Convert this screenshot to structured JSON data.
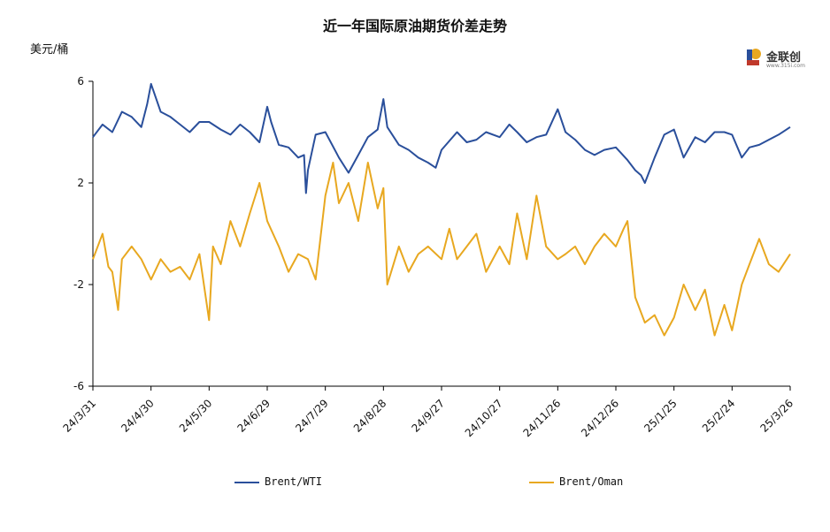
{
  "title": "近一年国际原油期货价差走势",
  "unit_label": "美元/桶",
  "logo": {
    "text": "金联创",
    "sub": "www.315i.com"
  },
  "colors": {
    "brent_wti": "#2a4f9b",
    "brent_oman": "#e8a820",
    "axis": "#000000"
  },
  "chart_data": {
    "type": "line",
    "title": "近一年国际原油期货价差走势",
    "ylabel": "美元/桶",
    "ylim": [
      -6,
      6
    ],
    "yticks": [
      6,
      2,
      -2,
      -6
    ],
    "x_range": [
      "2024-03-31",
      "2025-03-26"
    ],
    "x_tick_labels": [
      "24/3/31",
      "24/4/30",
      "24/5/30",
      "24/6/29",
      "24/7/29",
      "24/8/28",
      "24/9/27",
      "24/10/27",
      "24/11/26",
      "24/12/26",
      "25/1/25",
      "25/2/24",
      "25/3/26"
    ],
    "grid": false,
    "legend_position": "bottom",
    "series": [
      {
        "name": "Brent/WTI",
        "x": [
          "2024-03-31",
          "2024-04-05",
          "2024-04-10",
          "2024-04-15",
          "2024-04-20",
          "2024-04-25",
          "2024-04-28",
          "2024-04-30",
          "2024-05-05",
          "2024-05-10",
          "2024-05-15",
          "2024-05-20",
          "2024-05-25",
          "2024-05-30",
          "2024-06-05",
          "2024-06-10",
          "2024-06-15",
          "2024-06-20",
          "2024-06-25",
          "2024-06-29",
          "2024-07-01",
          "2024-07-05",
          "2024-07-10",
          "2024-07-15",
          "2024-07-18",
          "2024-07-19",
          "2024-07-20",
          "2024-07-24",
          "2024-07-29",
          "2024-08-05",
          "2024-08-10",
          "2024-08-15",
          "2024-08-20",
          "2024-08-25",
          "2024-08-28",
          "2024-08-30",
          "2024-09-05",
          "2024-09-10",
          "2024-09-15",
          "2024-09-20",
          "2024-09-24",
          "2024-09-27",
          "2024-10-05",
          "2024-10-10",
          "2024-10-15",
          "2024-10-20",
          "2024-10-27",
          "2024-11-01",
          "2024-11-05",
          "2024-11-10",
          "2024-11-15",
          "2024-11-20",
          "2024-11-26",
          "2024-11-30",
          "2024-12-05",
          "2024-12-10",
          "2024-12-15",
          "2024-12-20",
          "2024-12-26",
          "2025-01-01",
          "2025-01-05",
          "2025-01-08",
          "2025-01-10",
          "2025-01-15",
          "2025-01-20",
          "2025-01-25",
          "2025-01-30",
          "2025-02-05",
          "2025-02-10",
          "2025-02-15",
          "2025-02-20",
          "2025-02-24",
          "2025-03-01",
          "2025-03-05",
          "2025-03-10",
          "2025-03-15",
          "2025-03-20",
          "2025-03-26"
        ],
        "values": [
          3.8,
          4.3,
          4.0,
          4.8,
          4.6,
          4.2,
          5.1,
          5.9,
          4.8,
          4.6,
          4.3,
          4.0,
          4.4,
          4.4,
          4.1,
          3.9,
          4.3,
          4.0,
          3.6,
          5.0,
          4.4,
          3.5,
          3.4,
          3.0,
          3.1,
          1.6,
          2.5,
          3.9,
          4.0,
          3.0,
          2.4,
          3.1,
          3.8,
          4.1,
          5.3,
          4.2,
          3.5,
          3.3,
          3.0,
          2.8,
          2.6,
          3.3,
          4.0,
          3.6,
          3.7,
          4.0,
          3.8,
          4.3,
          4.0,
          3.6,
          3.8,
          3.9,
          4.9,
          4.0,
          3.7,
          3.3,
          3.1,
          3.3,
          3.4,
          2.9,
          2.5,
          2.3,
          2.0,
          3.0,
          3.9,
          4.1,
          3.0,
          3.8,
          3.6,
          4.0,
          4.0,
          3.9,
          3.0,
          3.4,
          3.5,
          3.7,
          3.9,
          4.2
        ]
      },
      {
        "name": "Brent/Oman",
        "x": [
          "2024-03-31",
          "2024-04-05",
          "2024-04-08",
          "2024-04-10",
          "2024-04-13",
          "2024-04-15",
          "2024-04-20",
          "2024-04-25",
          "2024-04-30",
          "2024-05-05",
          "2024-05-10",
          "2024-05-15",
          "2024-05-20",
          "2024-05-25",
          "2024-05-30",
          "2024-06-01",
          "2024-06-05",
          "2024-06-10",
          "2024-06-15",
          "2024-06-20",
          "2024-06-25",
          "2024-06-29",
          "2024-07-05",
          "2024-07-10",
          "2024-07-15",
          "2024-07-20",
          "2024-07-24",
          "2024-07-29",
          "2024-08-02",
          "2024-08-05",
          "2024-08-10",
          "2024-08-15",
          "2024-08-20",
          "2024-08-25",
          "2024-08-28",
          "2024-08-30",
          "2024-09-01",
          "2024-09-05",
          "2024-09-10",
          "2024-09-15",
          "2024-09-20",
          "2024-09-27",
          "2024-10-01",
          "2024-10-05",
          "2024-10-10",
          "2024-10-15",
          "2024-10-20",
          "2024-10-27",
          "2024-11-01",
          "2024-11-05",
          "2024-11-10",
          "2024-11-15",
          "2024-11-20",
          "2024-11-26",
          "2024-11-30",
          "2024-12-05",
          "2024-12-10",
          "2024-12-15",
          "2024-12-20",
          "2024-12-26",
          "2024-12-30",
          "2025-01-01",
          "2025-01-05",
          "2025-01-10",
          "2025-01-15",
          "2025-01-20",
          "2025-01-25",
          "2025-01-30",
          "2025-02-05",
          "2025-02-10",
          "2025-02-15",
          "2025-02-20",
          "2025-02-24",
          "2025-03-01",
          "2025-03-05",
          "2025-03-10",
          "2025-03-15",
          "2025-03-20",
          "2025-03-26"
        ],
        "values": [
          -1.0,
          0.0,
          -1.3,
          -1.5,
          -3.0,
          -1.0,
          -0.5,
          -1.0,
          -1.8,
          -1.0,
          -1.5,
          -1.3,
          -1.8,
          -0.8,
          -3.4,
          -0.5,
          -1.2,
          0.5,
          -0.5,
          0.8,
          2.0,
          0.5,
          -0.5,
          -1.5,
          -0.8,
          -1.0,
          -1.8,
          1.5,
          2.8,
          1.2,
          2.0,
          0.5,
          2.8,
          1.0,
          1.8,
          -2.0,
          -1.5,
          -0.5,
          -1.5,
          -0.8,
          -0.5,
          -1.0,
          0.2,
          -1.0,
          -0.5,
          0.0,
          -1.5,
          -0.5,
          -1.2,
          0.8,
          -1.0,
          1.5,
          -0.5,
          -1.0,
          -0.8,
          -0.5,
          -1.2,
          -0.5,
          0.0,
          -0.5,
          0.2,
          0.5,
          -2.5,
          -3.5,
          -3.2,
          -4.0,
          -3.3,
          -2.0,
          -3.0,
          -2.2,
          -4.0,
          -2.8,
          -3.8,
          -2.0,
          -1.2,
          -0.2,
          -1.2,
          -1.5,
          -0.8
        ]
      }
    ]
  },
  "legend": [
    {
      "label": "Brent/WTI"
    },
    {
      "label": "Brent/Oman"
    }
  ]
}
